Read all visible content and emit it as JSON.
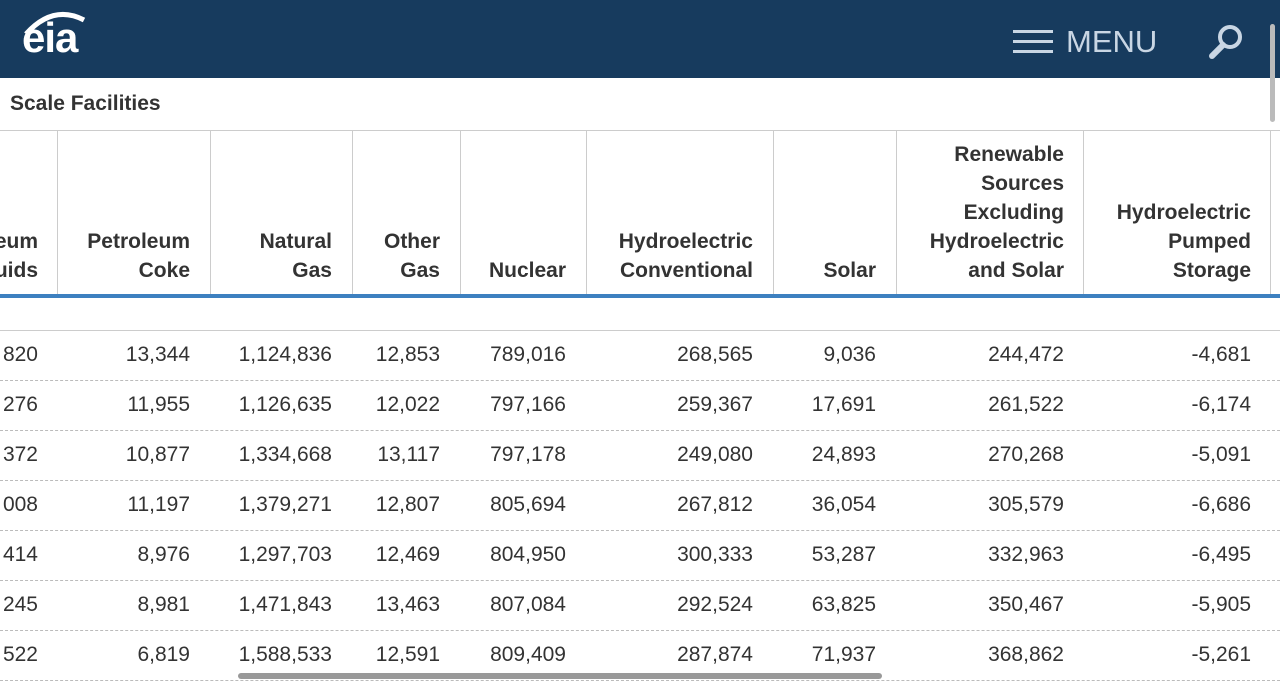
{
  "header": {
    "logo": "eia",
    "menu": "MENU"
  },
  "table": {
    "caption": "Scale Facilities",
    "headers": [
      [
        "eum",
        "uids"
      ],
      [
        "Petroleum",
        "Coke"
      ],
      [
        "Natural",
        "Gas"
      ],
      [
        "Other",
        "Gas"
      ],
      [
        "Nuclear"
      ],
      [
        "Hydroelectric",
        "Conventional"
      ],
      [
        "Solar"
      ],
      [
        "Renewable",
        "Sources",
        "Excluding",
        "Hydroelectric",
        "and Solar"
      ],
      [
        "Hydroelectric",
        "Pumped",
        "Storage"
      ]
    ],
    "rows": [
      [
        "820",
        "13,344",
        "1,124,836",
        "12,853",
        "789,016",
        "268,565",
        "9,036",
        "244,472",
        "-4,681"
      ],
      [
        "276",
        "11,955",
        "1,126,635",
        "12,022",
        "797,166",
        "259,367",
        "17,691",
        "261,522",
        "-6,174"
      ],
      [
        "372",
        "10,877",
        "1,334,668",
        "13,117",
        "797,178",
        "249,080",
        "24,893",
        "270,268",
        "-5,091"
      ],
      [
        "008",
        "11,197",
        "1,379,271",
        "12,807",
        "805,694",
        "267,812",
        "36,054",
        "305,579",
        "-6,686"
      ],
      [
        "414",
        "8,976",
        "1,297,703",
        "12,469",
        "804,950",
        "300,333",
        "53,287",
        "332,963",
        "-6,495"
      ],
      [
        "245",
        "8,981",
        "1,471,843",
        "13,463",
        "807,084",
        "292,524",
        "63,825",
        "350,467",
        "-5,905"
      ],
      [
        "522",
        "6,819",
        "1,588,533",
        "12,591",
        "809,409",
        "287,874",
        "71,937",
        "368,862",
        "-5,261"
      ]
    ]
  }
}
